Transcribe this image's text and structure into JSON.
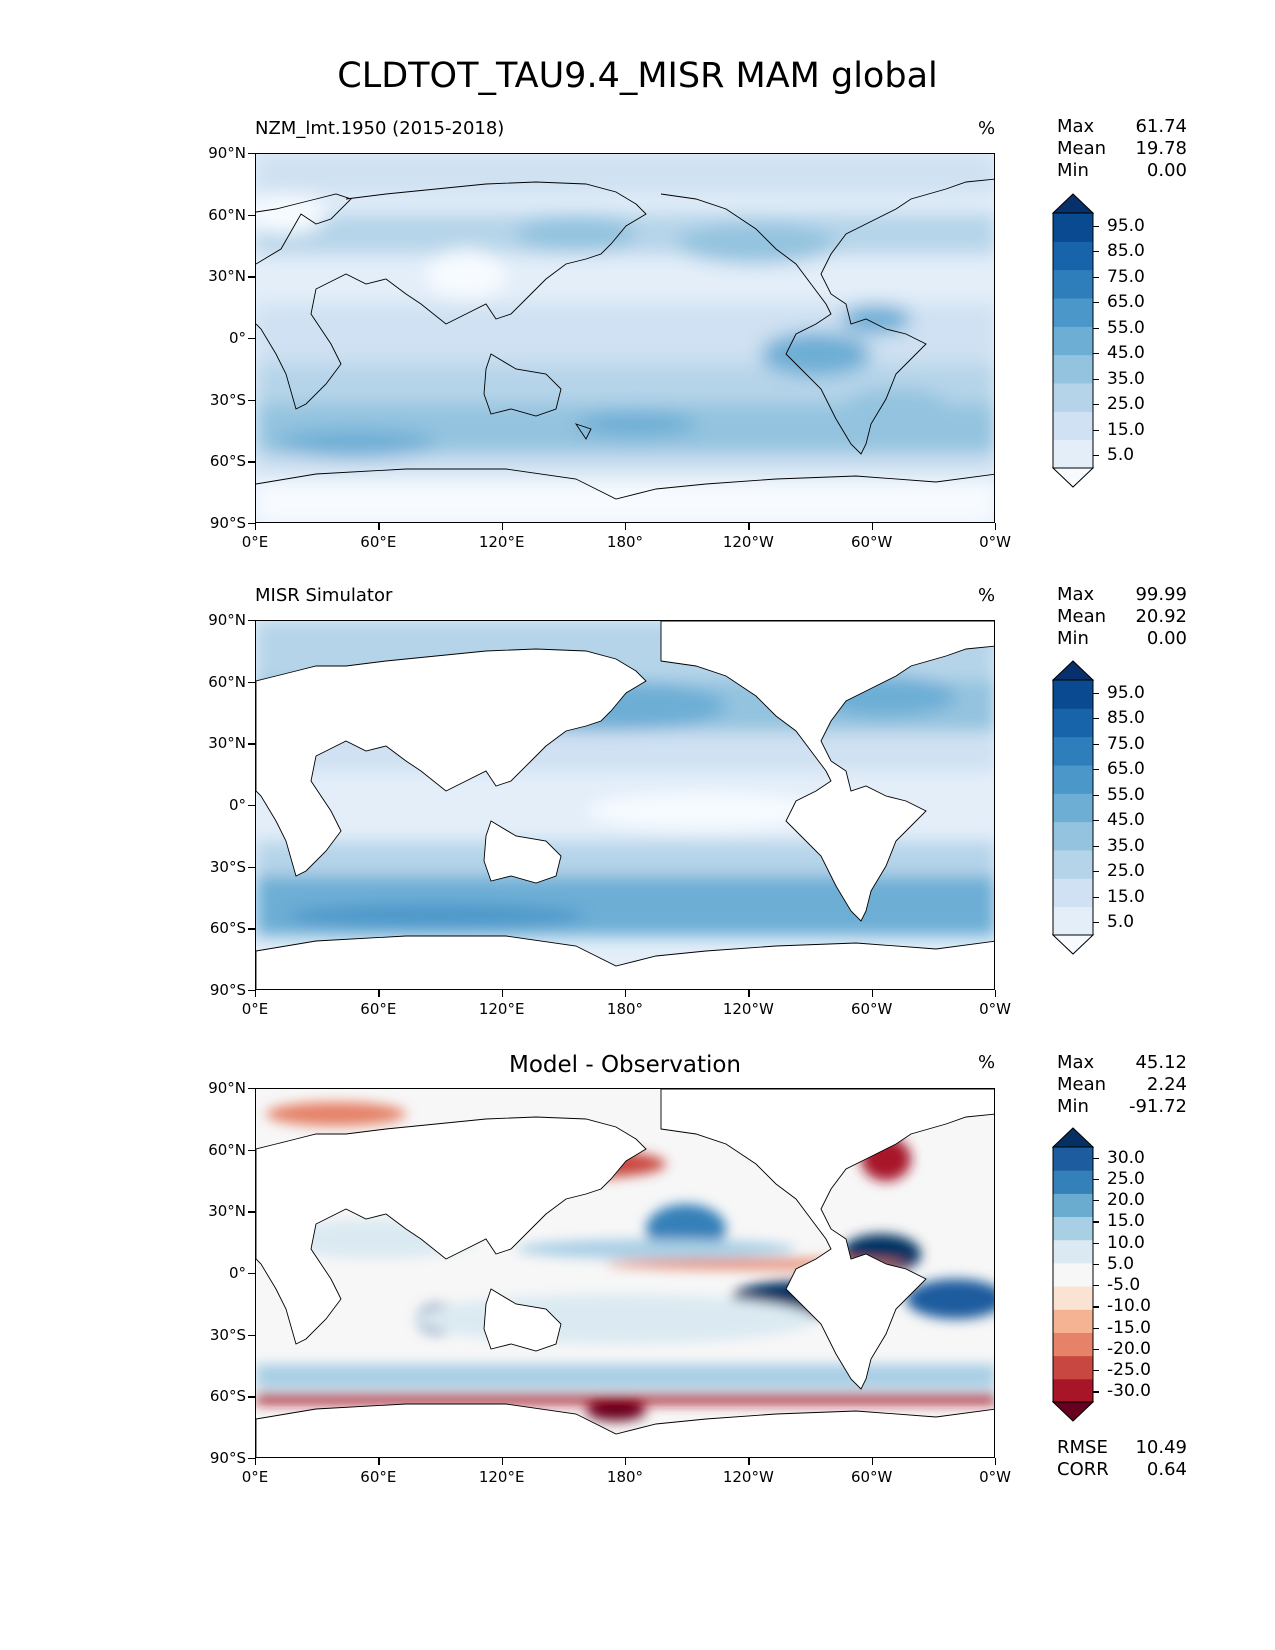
{
  "figure": {
    "title": "CLDTOT_TAU9.4_MISR MAM global"
  },
  "axes": {
    "y_ticks": [
      "90°N",
      "60°N",
      "30°N",
      "0°",
      "30°S",
      "60°S",
      "90°S"
    ],
    "x_ticks": [
      "0°E",
      "60°E",
      "120°E",
      "180°",
      "120°W",
      "60°W",
      "0°W"
    ]
  },
  "panels": [
    {
      "title": "NZM_lmt.1950 (2015-2018)",
      "unit": "%",
      "stats": {
        "max_label": "Max",
        "max": "61.74",
        "mean_label": "Mean",
        "mean": "19.78",
        "min_label": "Min",
        "min": "0.00"
      },
      "colorbar": [
        "95.0",
        "85.0",
        "75.0",
        "65.0",
        "55.0",
        "45.0",
        "35.0",
        "25.0",
        "15.0",
        "5.0"
      ]
    },
    {
      "title": "MISR Simulator",
      "unit": "%",
      "stats": {
        "max_label": "Max",
        "max": "99.99",
        "mean_label": "Mean",
        "mean": "20.92",
        "min_label": "Min",
        "min": "0.00"
      },
      "colorbar": [
        "95.0",
        "85.0",
        "75.0",
        "65.0",
        "55.0",
        "45.0",
        "35.0",
        "25.0",
        "15.0",
        "5.0"
      ]
    },
    {
      "title": "Model - Observation",
      "unit": "%",
      "stats": {
        "max_label": "Max",
        "max": "45.12",
        "mean_label": "Mean",
        "mean": "2.24",
        "min_label": "Min",
        "min": "-91.72"
      },
      "colorbar": [
        "30.0",
        "25.0",
        "20.0",
        "15.0",
        "10.0",
        "5.0",
        "-5.0",
        "-10.0",
        "-15.0",
        "-20.0",
        "-25.0",
        "-30.0"
      ],
      "extra_stats": {
        "rmse_label": "RMSE",
        "rmse": "10.49",
        "corr_label": "CORR",
        "corr": "0.64"
      }
    }
  ],
  "colors": {
    "blues": [
      "#f7fbff",
      "#e3eef9",
      "#cfe1f2",
      "#b5d4e9",
      "#93c3df",
      "#6daed5",
      "#4b97c9",
      "#2f7ebc",
      "#1864aa",
      "#0a4a90",
      "#08306b"
    ],
    "diverging": [
      "#67001f",
      "#a81529",
      "#c94741",
      "#e58267",
      "#f6b394",
      "#fbe3d4",
      "#f7f7f7",
      "#dbeaf2",
      "#a9cfe5",
      "#6aacd0",
      "#3480b9",
      "#1c5c9f",
      "#053061"
    ]
  }
}
